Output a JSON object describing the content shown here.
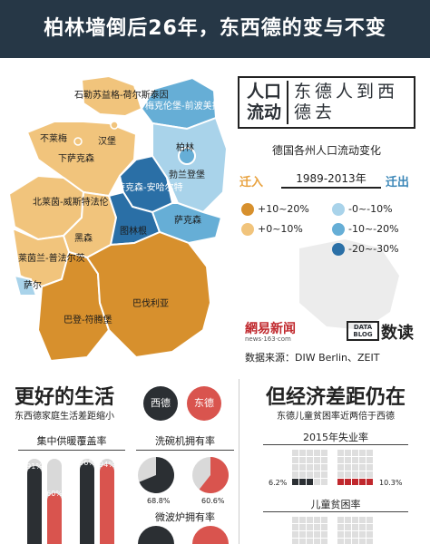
{
  "title": "柏林墙倒后26年，东西德的变与不变",
  "headline": {
    "left": "人口流动",
    "right": "东德人到西德去"
  },
  "map": {
    "subtitle": "德国各州人口流动变化",
    "period": "1989-2013年",
    "in_label": "迁入",
    "out_label": "迁出",
    "states": [
      {
        "name": "石勒苏益格-荷尔斯泰因"
      },
      {
        "name": "梅克伦堡-前波美拉尼亚"
      },
      {
        "name": "不莱梅"
      },
      {
        "name": "汉堡"
      },
      {
        "name": "下萨克森"
      },
      {
        "name": "柏林"
      },
      {
        "name": "勃兰登堡"
      },
      {
        "name": "萨克森-安哈尔特"
      },
      {
        "name": "北莱茵-威斯特法伦"
      },
      {
        "name": "图林根"
      },
      {
        "name": "萨克森"
      },
      {
        "name": "黑森"
      },
      {
        "name": "莱茵兰-普法尔茨"
      },
      {
        "name": "萨尔"
      },
      {
        "name": "巴伐利亚"
      },
      {
        "name": "巴登-符腾堡"
      }
    ],
    "legend": [
      {
        "label": "+10~20%",
        "color": "#d7902d"
      },
      {
        "label": "+0~10%",
        "color": "#f1c47c"
      },
      {
        "label": "-0~-10%",
        "color": "#a9d3ea"
      },
      {
        "label": "-10~-20%",
        "color": "#66aed6"
      },
      {
        "label": "-20~-30%",
        "color": "#2a6fa6"
      }
    ]
  },
  "brands": {
    "a": "網易新闻",
    "a_sub": "news·163·com",
    "b_box": "DATA BLOG",
    "b": "数读"
  },
  "source": "数据来源：DIW Berlin、ZEIT",
  "left_section": {
    "title": "更好的生活",
    "subtitle": "东西德家庭生活差距缩小",
    "east": "西德",
    "west": "东德",
    "charts": [
      {
        "title": "集中供暖覆盖率"
      },
      {
        "title": "洗碗机拥有率"
      },
      {
        "title": "微波炉拥有率"
      }
    ]
  },
  "right_section": {
    "title": "但经济差距仍在",
    "subtitle": "东德儿童贫困率近两倍于西德",
    "charts": [
      {
        "title": "2015年失业率"
      },
      {
        "title": "儿童贫困率"
      }
    ]
  },
  "chart_data": [
    {
      "type": "bar",
      "title": "集中供暖覆盖率",
      "series": [
        {
          "name": "西德",
          "values": [
            91,
            96
          ]
        },
        {
          "name": "东德",
          "values": [
            60,
            94
          ]
        }
      ],
      "ylim": [
        0,
        100
      ],
      "colors": {
        "西德": "#2b2f33",
        "东德": "#d9544e"
      }
    },
    {
      "type": "pie",
      "title": "洗碗机拥有率",
      "slices": [
        {
          "name": "西德",
          "value": 68.8
        },
        {
          "name": "东德",
          "value": 60.6
        }
      ]
    },
    {
      "type": "pie",
      "title": "微波炉拥有率",
      "slices": [
        {
          "name": "西德",
          "value": null
        },
        {
          "name": "东德",
          "value": null
        }
      ]
    },
    {
      "type": "bar",
      "title": "2015年失业率",
      "series": [
        {
          "name": "西德",
          "values": [
            6.2
          ]
        },
        {
          "name": "东德",
          "values": [
            10.3
          ]
        }
      ],
      "colors": {
        "西德": "#2b2f33",
        "东德": "#c0282d"
      }
    }
  ],
  "labels": {
    "heat_1": "91%",
    "heat_2": "60%",
    "heat_3": "96%",
    "heat_4": "94%",
    "dish_west": "68.8%",
    "dish_east": "60.6%",
    "unemp_west": "6.2%",
    "unemp_east": "10.3%"
  }
}
